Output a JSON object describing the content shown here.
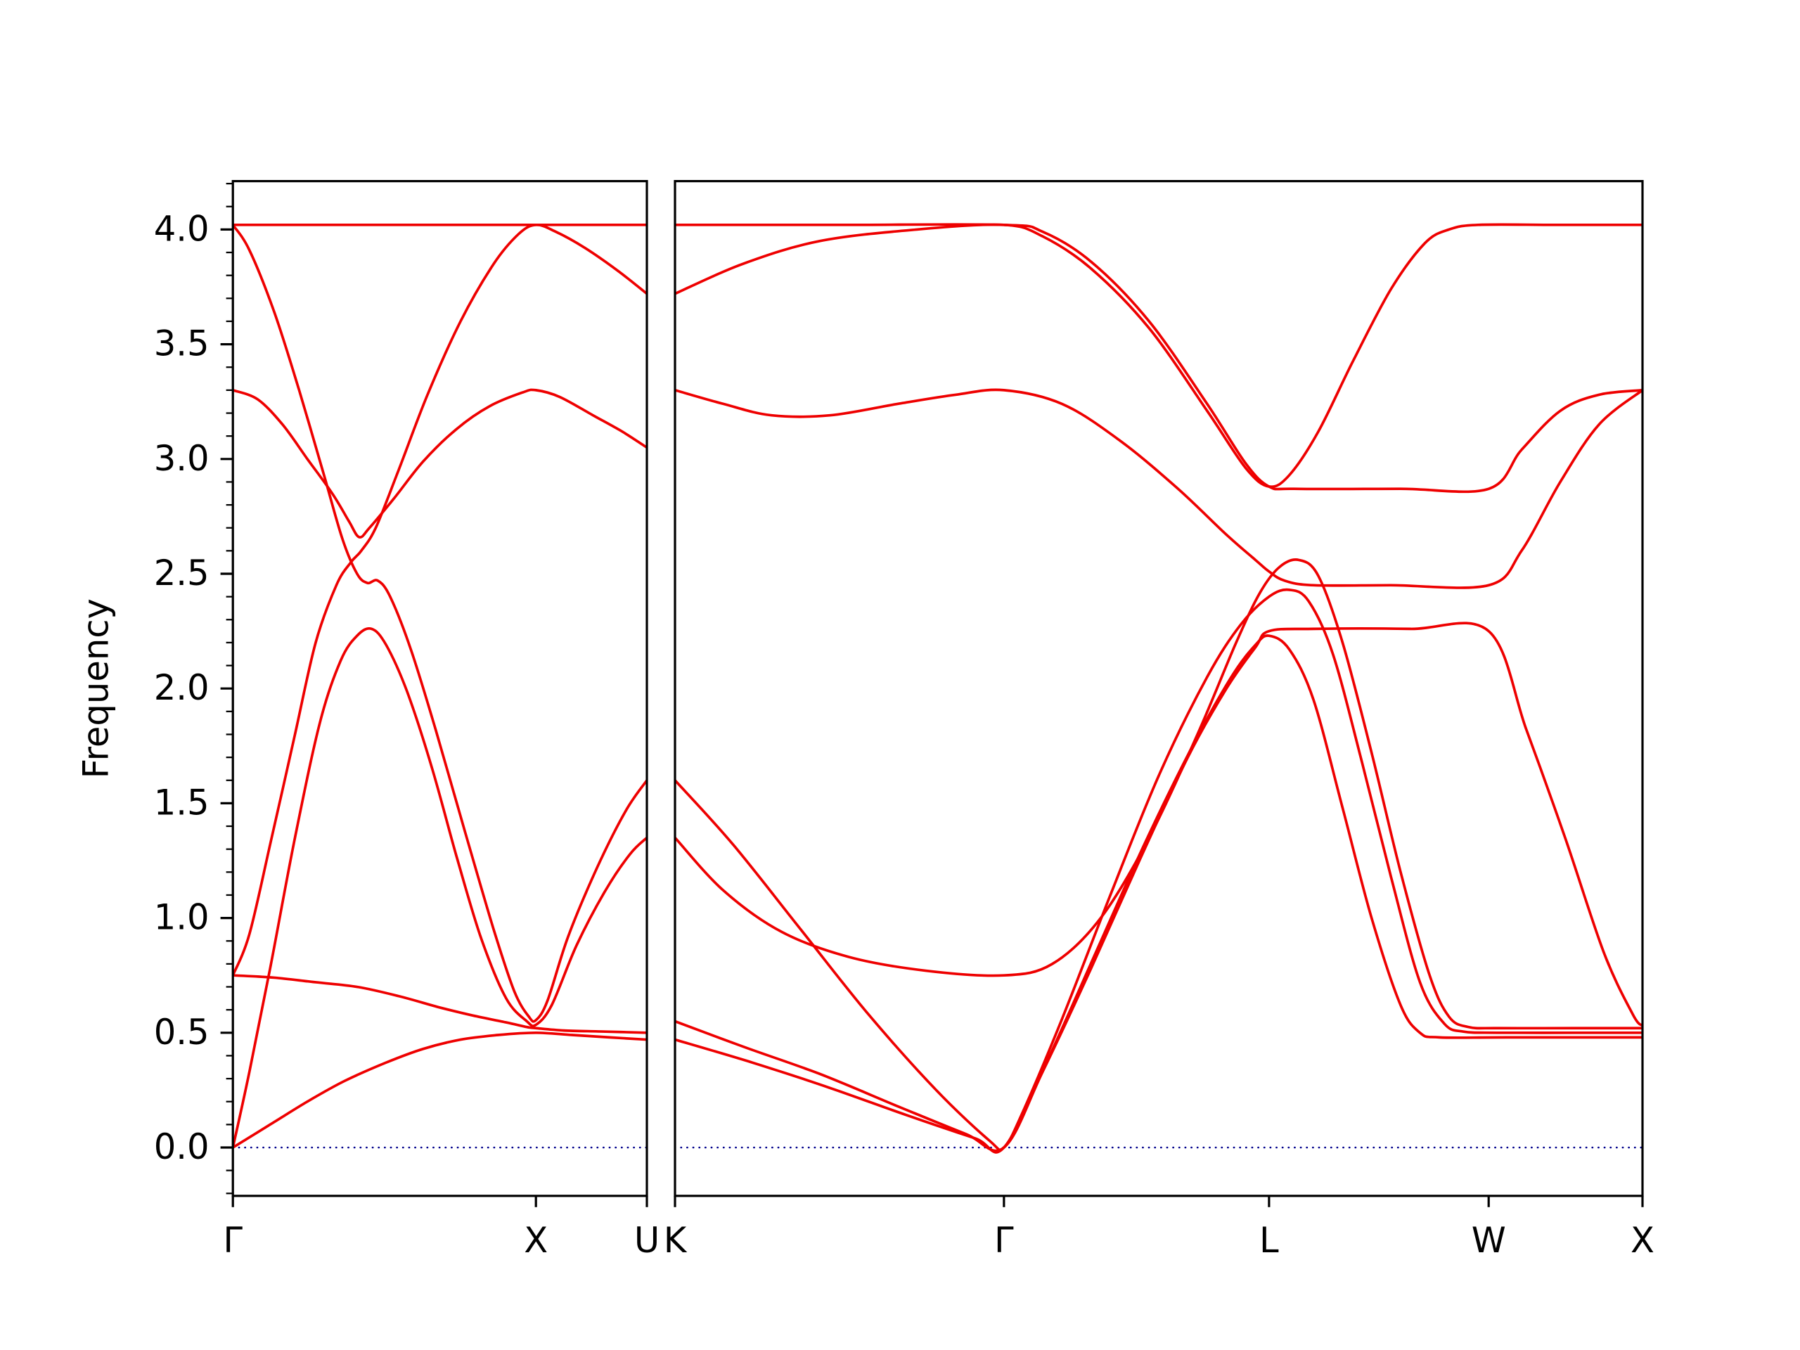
{
  "chart_data": {
    "type": "line",
    "title": "",
    "xlabel": "",
    "ylabel": "Frequency",
    "ylim": [
      -0.21,
      4.21
    ],
    "grid": false,
    "legend": "none",
    "line_color": "#ee0000",
    "zero_line": {
      "value": 0.0,
      "color": "#00008b",
      "style": "dotted"
    },
    "yticks": {
      "values": [
        0,
        0.5,
        1.0,
        1.5,
        2.0,
        2.5,
        3.0,
        3.5,
        4.0
      ],
      "labels": [
        "0.0",
        "0.5",
        "1.0",
        "1.5",
        "2.0",
        "2.5",
        "3.0",
        "3.5",
        "4.0"
      ]
    },
    "minor_ytick_step": 0.1,
    "coord_note": "each branch is a polyline of [fraction-along-panel, frequency] points",
    "panels": [
      {
        "name": "Gamma-X-U",
        "xticks": [
          {
            "label": "Γ",
            "pos": 0
          },
          {
            "label": "X",
            "pos": 0.732
          },
          {
            "label": "U",
            "pos": 1
          }
        ],
        "branches": [
          [
            [
              0,
              4.02
            ],
            [
              0.37,
              4.02
            ],
            [
              0.732,
              4.02
            ],
            [
              1,
              4.02
            ]
          ],
          [
            [
              0,
              0.75
            ],
            [
              0.04,
              0.93
            ],
            [
              0.09,
              1.32
            ],
            [
              0.15,
              1.8
            ],
            [
              0.2,
              2.2
            ],
            [
              0.25,
              2.45
            ],
            [
              0.285,
              2.55
            ],
            [
              0.31,
              2.6
            ],
            [
              0.345,
              2.7
            ],
            [
              0.4,
              2.95
            ],
            [
              0.47,
              3.28
            ],
            [
              0.55,
              3.6
            ],
            [
              0.63,
              3.85
            ],
            [
              0.69,
              3.98
            ],
            [
              0.732,
              4.02
            ],
            [
              0.78,
              3.99
            ],
            [
              0.85,
              3.92
            ],
            [
              0.93,
              3.82
            ],
            [
              1,
              3.72
            ]
          ],
          [
            [
              0,
              3.3
            ],
            [
              0.06,
              3.26
            ],
            [
              0.12,
              3.15
            ],
            [
              0.18,
              3.0
            ],
            [
              0.24,
              2.85
            ],
            [
              0.28,
              2.73
            ],
            [
              0.305,
              2.66
            ],
            [
              0.33,
              2.7
            ],
            [
              0.39,
              2.83
            ],
            [
              0.46,
              2.99
            ],
            [
              0.54,
              3.13
            ],
            [
              0.62,
              3.23
            ],
            [
              0.7,
              3.29
            ],
            [
              0.732,
              3.3
            ],
            [
              0.79,
              3.27
            ],
            [
              0.87,
              3.19
            ],
            [
              0.94,
              3.12
            ],
            [
              1,
              3.05
            ]
          ],
          [
            [
              0,
              4.02
            ],
            [
              0.04,
              3.91
            ],
            [
              0.1,
              3.64
            ],
            [
              0.16,
              3.3
            ],
            [
              0.22,
              2.93
            ],
            [
              0.265,
              2.65
            ],
            [
              0.3,
              2.5
            ],
            [
              0.325,
              2.46
            ],
            [
              0.35,
              2.47
            ],
            [
              0.38,
              2.4
            ],
            [
              0.43,
              2.17
            ],
            [
              0.49,
              1.82
            ],
            [
              0.56,
              1.38
            ],
            [
              0.63,
              0.95
            ],
            [
              0.68,
              0.68
            ],
            [
              0.715,
              0.57
            ],
            [
              0.732,
              0.555
            ],
            [
              0.76,
              0.64
            ],
            [
              0.81,
              0.92
            ],
            [
              0.88,
              1.22
            ],
            [
              0.95,
              1.47
            ],
            [
              1,
              1.6
            ]
          ],
          [
            [
              0,
              0
            ],
            [
              0.04,
              0.33
            ],
            [
              0.09,
              0.78
            ],
            [
              0.15,
              1.35
            ],
            [
              0.21,
              1.85
            ],
            [
              0.26,
              2.12
            ],
            [
              0.3,
              2.23
            ],
            [
              0.335,
              2.26
            ],
            [
              0.37,
              2.19
            ],
            [
              0.42,
              1.99
            ],
            [
              0.48,
              1.66
            ],
            [
              0.54,
              1.27
            ],
            [
              0.6,
              0.91
            ],
            [
              0.66,
              0.65
            ],
            [
              0.71,
              0.55
            ],
            [
              0.732,
              0.535
            ],
            [
              0.77,
              0.62
            ],
            [
              0.83,
              0.88
            ],
            [
              0.9,
              1.12
            ],
            [
              0.96,
              1.28
            ],
            [
              1,
              1.35
            ]
          ],
          [
            [
              0,
              0.75
            ],
            [
              0.1,
              0.74
            ],
            [
              0.2,
              0.72
            ],
            [
              0.3,
              0.7
            ],
            [
              0.4,
              0.66
            ],
            [
              0.5,
              0.61
            ],
            [
              0.58,
              0.575
            ],
            [
              0.66,
              0.545
            ],
            [
              0.71,
              0.525
            ],
            [
              0.732,
              0.52
            ],
            [
              0.8,
              0.51
            ],
            [
              0.9,
              0.505
            ],
            [
              1,
              0.5
            ]
          ],
          [
            [
              0,
              0
            ],
            [
              0.09,
              0.1
            ],
            [
              0.18,
              0.2
            ],
            [
              0.27,
              0.29
            ],
            [
              0.37,
              0.37
            ],
            [
              0.46,
              0.43
            ],
            [
              0.55,
              0.47
            ],
            [
              0.64,
              0.49
            ],
            [
              0.732,
              0.5
            ],
            [
              0.82,
              0.49
            ],
            [
              0.91,
              0.48
            ],
            [
              1,
              0.47
            ]
          ]
        ]
      },
      {
        "name": "K-Gamma-L-W-X",
        "xticks": [
          {
            "label": "K",
            "pos": 0
          },
          {
            "label": "Γ",
            "pos": 0.34
          },
          {
            "label": "L",
            "pos": 0.614
          },
          {
            "label": "W",
            "pos": 0.841
          },
          {
            "label": "X",
            "pos": 1
          }
        ],
        "branches": [
          [
            [
              0,
              4.02
            ],
            [
              0.17,
              4.02
            ],
            [
              0.34,
              4.02
            ],
            [
              0.38,
              3.99
            ],
            [
              0.43,
              3.86
            ],
            [
              0.49,
              3.6
            ],
            [
              0.55,
              3.24
            ],
            [
              0.59,
              2.98
            ],
            [
              0.614,
              2.88
            ],
            [
              0.64,
              2.87
            ],
            [
              0.75,
              2.87
            ],
            [
              0.841,
              2.87
            ],
            [
              0.875,
              3.04
            ],
            [
              0.915,
              3.21
            ],
            [
              0.955,
              3.28
            ],
            [
              1,
              3.3
            ]
          ],
          [
            [
              0,
              3.72
            ],
            [
              0.07,
              3.85
            ],
            [
              0.15,
              3.95
            ],
            [
              0.25,
              4.0
            ],
            [
              0.34,
              4.02
            ],
            [
              0.38,
              3.97
            ],
            [
              0.43,
              3.83
            ],
            [
              0.49,
              3.57
            ],
            [
              0.55,
              3.21
            ],
            [
              0.59,
              2.96
            ],
            [
              0.614,
              2.88
            ],
            [
              0.635,
              2.93
            ],
            [
              0.665,
              3.12
            ],
            [
              0.7,
              3.42
            ],
            [
              0.74,
              3.74
            ],
            [
              0.775,
              3.94
            ],
            [
              0.8,
              4.0
            ],
            [
              0.83,
              4.02
            ],
            [
              0.91,
              4.02
            ],
            [
              1,
              4.02
            ]
          ],
          [
            [
              0,
              3.3
            ],
            [
              0.05,
              3.24
            ],
            [
              0.1,
              3.19
            ],
            [
              0.16,
              3.19
            ],
            [
              0.23,
              3.24
            ],
            [
              0.29,
              3.28
            ],
            [
              0.34,
              3.3
            ],
            [
              0.4,
              3.24
            ],
            [
              0.46,
              3.08
            ],
            [
              0.52,
              2.87
            ],
            [
              0.57,
              2.67
            ],
            [
              0.6,
              2.56
            ],
            [
              0.614,
              2.51
            ],
            [
              0.63,
              2.47
            ],
            [
              0.66,
              2.45
            ],
            [
              0.74,
              2.45
            ],
            [
              0.841,
              2.45
            ],
            [
              0.875,
              2.6
            ],
            [
              0.915,
              2.9
            ],
            [
              0.955,
              3.15
            ],
            [
              1,
              3.3
            ]
          ],
          [
            [
              0,
              1.35
            ],
            [
              0.05,
              1.12
            ],
            [
              0.11,
              0.94
            ],
            [
              0.18,
              0.83
            ],
            [
              0.26,
              0.77
            ],
            [
              0.34,
              0.75
            ],
            [
              0.39,
              0.8
            ],
            [
              0.44,
              1.0
            ],
            [
              0.49,
              1.35
            ],
            [
              0.54,
              1.8
            ],
            [
              0.58,
              2.2
            ],
            [
              0.605,
              2.42
            ],
            [
              0.625,
              2.53
            ],
            [
              0.645,
              2.56
            ],
            [
              0.665,
              2.49
            ],
            [
              0.69,
              2.2
            ],
            [
              0.72,
              1.72
            ],
            [
              0.75,
              1.2
            ],
            [
              0.78,
              0.75
            ],
            [
              0.8,
              0.57
            ],
            [
              0.82,
              0.525
            ],
            [
              0.85,
              0.52
            ],
            [
              0.93,
              0.52
            ],
            [
              1,
              0.52
            ]
          ],
          [
            [
              0,
              1.6
            ],
            [
              0.06,
              1.32
            ],
            [
              0.13,
              0.95
            ],
            [
              0.2,
              0.58
            ],
            [
              0.27,
              0.25
            ],
            [
              0.325,
              0.03
            ],
            [
              0.34,
              0
            ],
            [
              0.36,
              0.16
            ],
            [
              0.4,
              0.56
            ],
            [
              0.45,
              1.1
            ],
            [
              0.5,
              1.62
            ],
            [
              0.55,
              2.05
            ],
            [
              0.585,
              2.28
            ],
            [
              0.614,
              2.4
            ],
            [
              0.635,
              2.43
            ],
            [
              0.655,
              2.38
            ],
            [
              0.68,
              2.15
            ],
            [
              0.71,
              1.68
            ],
            [
              0.74,
              1.18
            ],
            [
              0.77,
              0.72
            ],
            [
              0.795,
              0.54
            ],
            [
              0.815,
              0.505
            ],
            [
              0.85,
              0.5
            ],
            [
              0.93,
              0.5
            ],
            [
              1,
              0.5
            ]
          ],
          [
            [
              0,
              0.55
            ],
            [
              0.07,
              0.44
            ],
            [
              0.15,
              0.32
            ],
            [
              0.23,
              0.18
            ],
            [
              0.3,
              0.06
            ],
            [
              0.34,
              0
            ],
            [
              0.38,
              0.33
            ],
            [
              0.43,
              0.78
            ],
            [
              0.48,
              1.25
            ],
            [
              0.53,
              1.7
            ],
            [
              0.57,
              2.0
            ],
            [
              0.6,
              2.18
            ],
            [
              0.614,
              2.25
            ],
            [
              0.66,
              2.26
            ],
            [
              0.76,
              2.26
            ],
            [
              0.841,
              2.25
            ],
            [
              0.88,
              1.82
            ],
            [
              0.92,
              1.35
            ],
            [
              0.96,
              0.85
            ],
            [
              0.99,
              0.58
            ],
            [
              1,
              0.53
            ]
          ],
          [
            [
              0,
              0.47
            ],
            [
              0.08,
              0.37
            ],
            [
              0.16,
              0.26
            ],
            [
              0.24,
              0.14
            ],
            [
              0.31,
              0.04
            ],
            [
              0.34,
              0
            ],
            [
              0.385,
              0.38
            ],
            [
              0.435,
              0.85
            ],
            [
              0.485,
              1.32
            ],
            [
              0.535,
              1.75
            ],
            [
              0.575,
              2.05
            ],
            [
              0.6,
              2.19
            ],
            [
              0.614,
              2.23
            ],
            [
              0.635,
              2.17
            ],
            [
              0.66,
              1.95
            ],
            [
              0.69,
              1.48
            ],
            [
              0.72,
              1.0
            ],
            [
              0.75,
              0.62
            ],
            [
              0.77,
              0.5
            ],
            [
              0.79,
              0.48
            ],
            [
              0.86,
              0.48
            ],
            [
              1,
              0.48
            ]
          ]
        ]
      }
    ]
  }
}
